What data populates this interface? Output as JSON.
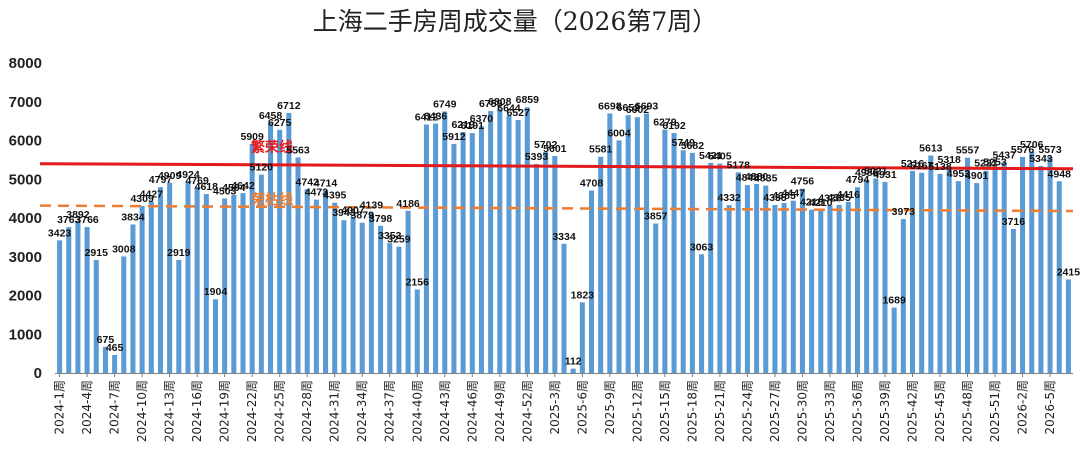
{
  "chart_data": {
    "type": "bar",
    "title": "上海二手房周成交量（2026第7周）",
    "xlabel": "",
    "ylabel": "",
    "ylim": [
      0,
      8000
    ],
    "y_ticks": [
      0,
      1000,
      2000,
      3000,
      4000,
      5000,
      6000,
      7000,
      8000
    ],
    "grid": false,
    "bar_color": "#5B9BD5",
    "categories": [
      "2024-1周",
      "2024-2周",
      "2024-3周",
      "2024-4周",
      "2024-5周",
      "2024-6周",
      "2024-7周",
      "2024-8周",
      "2024-9周",
      "2024-10周",
      "2024-11周",
      "2024-12周",
      "2024-13周",
      "2024-14周",
      "2024-15周",
      "2024-16周",
      "2024-17周",
      "2024-18周",
      "2024-19周",
      "2024-20周",
      "2024-21周",
      "2024-22周",
      "2024-23周",
      "2024-24周",
      "2024-25周",
      "2024-26周",
      "2024-27周",
      "2024-28周",
      "2024-29周",
      "2024-30周",
      "2024-31周",
      "2024-32周",
      "2024-33周",
      "2024-34周",
      "2024-35周",
      "2024-36周",
      "2024-37周",
      "2024-38周",
      "2024-39周",
      "2024-40周",
      "2024-41周",
      "2024-42周",
      "2024-43周",
      "2024-44周",
      "2024-45周",
      "2024-46周",
      "2024-47周",
      "2024-48周",
      "2024-49周",
      "2024-50周",
      "2024-51周",
      "2024-52周",
      "2025-1周",
      "2025-2周",
      "2025-3周",
      "2025-4周",
      "2025-5周",
      "2025-6周",
      "2025-7周",
      "2025-8周",
      "2025-9周",
      "2025-10周",
      "2025-11周",
      "2025-12周",
      "2025-13周",
      "2025-14周",
      "2025-15周",
      "2025-16周",
      "2025-17周",
      "2025-18周",
      "2025-19周",
      "2025-20周",
      "2025-21周",
      "2025-22周",
      "2025-23周",
      "2025-24周",
      "2025-25周",
      "2025-26周",
      "2025-27周",
      "2025-28周",
      "2025-29周",
      "2025-30周",
      "2025-31周",
      "2025-32周",
      "2025-33周",
      "2025-34周",
      "2025-35周",
      "2025-36周",
      "2025-37周",
      "2025-38周",
      "2025-39周",
      "2025-40周",
      "2025-41周",
      "2025-42周",
      "2025-43周",
      "2025-44周",
      "2025-45周",
      "2025-46周",
      "2025-47周",
      "2025-48周",
      "2025-49周",
      "2025-50周",
      "2025-51周",
      "2025-52周",
      "2026-1周",
      "2026-2周",
      "2026-3周",
      "2026-4周",
      "2026-5周",
      "2026-6周",
      "2026-7周"
    ],
    "tick_labels": [
      "2024-1周",
      "2024-4周",
      "2024-7周",
      "2024-10周",
      "2024-13周",
      "2024-16周",
      "2024-19周",
      "2024-22周",
      "2024-25周",
      "2024-28周",
      "2024-31周",
      "2024-34周",
      "2024-37周",
      "2024-40周",
      "2024-43周",
      "2024-46周",
      "2024-49周",
      "2024-52周",
      "2025-3周",
      "2025-6周",
      "2025-9周",
      "2025-12周",
      "2025-15周",
      "2025-18周",
      "2025-21周",
      "2025-24周",
      "2025-27周",
      "2025-30周",
      "2025-33周",
      "2025-36周",
      "2025-39周",
      "2025-42周",
      "2025-45周",
      "2025-48周",
      "2025-51周",
      "2026-2周",
      "2026-5周"
    ],
    "values": [
      3423,
      3763,
      3892,
      3766,
      2915,
      675,
      465,
      3008,
      3834,
      4309,
      4427,
      4797,
      4909,
      2919,
      4924,
      4769,
      4618,
      1904,
      4503,
      4594,
      4642,
      5909,
      5120,
      6458,
      6275,
      6712,
      5563,
      4742,
      4473,
      4714,
      4395,
      3943,
      4007,
      3879,
      4139,
      3798,
      3353,
      3259,
      4186,
      2156,
      6412,
      6436,
      6749,
      5912,
      6219,
      6191,
      6370,
      6759,
      6808,
      6644,
      6527,
      6859,
      5393,
      5702,
      5601,
      3334,
      112,
      1823,
      4708,
      5581,
      6698,
      6004,
      6652,
      6602,
      6693,
      3857,
      6279,
      6192,
      5749,
      5682,
      3063,
      5421,
      5405,
      4332,
      5178,
      4848,
      4880,
      4835,
      4335,
      4385,
      4447,
      4756,
      4216,
      4210,
      4328,
      4335,
      4416,
      4794,
      4986,
      5021,
      4931,
      1689,
      3973,
      5216,
      5167,
      5613,
      5138,
      5318,
      4953,
      5557,
      4901,
      5221,
      5253,
      5437,
      3716,
      5576,
      5706,
      5343,
      5573,
      4948,
      2415
    ],
    "data_labels": [
      "3423",
      "3763",
      "3892",
      "3766",
      "2915",
      "675",
      "465",
      "3008",
      "3834",
      "4309",
      "4427",
      "4797",
      "4909",
      "2919",
      "4924",
      "4769",
      "4618",
      "1904",
      "4503",
      "4594",
      "4642",
      "5909",
      "5120",
      "6458",
      "6275",
      "6712",
      "5563",
      "4742",
      "4473",
      "4714",
      "4395",
      "3943",
      "4007",
      "3879",
      "4139",
      "3798",
      "3353",
      "3259",
      "4186",
      "2156",
      "6412",
      "6436",
      "6749",
      "5912",
      "6219",
      "6191",
      "6370",
      "6759",
      "6808",
      "6644",
      "6527",
      "6859",
      "5393",
      "5702",
      "5601",
      "3334",
      "112",
      "1823",
      "4708",
      "5581",
      "6698",
      "6004",
      "6652",
      "6602",
      "6693",
      "3857",
      "6279",
      "6192",
      "5749",
      "5682",
      "3063",
      "5421",
      "5405",
      "4332",
      "5178",
      "4848",
      "4880",
      "4835",
      "4335",
      "4385",
      "4447",
      "4756",
      "4216",
      "4210",
      "4328",
      "4335",
      "4416",
      "4794",
      "4986",
      "5021",
      "4931",
      "1689",
      "3973",
      "5216",
      "5167",
      "5613",
      "5138",
      "5318",
      "4953",
      "5557",
      "4901",
      "5221",
      "5253",
      "5437",
      "3716",
      "5576",
      "5706",
      "5343",
      "5573",
      "4948",
      "2415"
    ],
    "reference_lines": [
      {
        "name": "繁荣线",
        "start_value": 5400,
        "end_value": 5270,
        "style": "solid",
        "color": "#E31A1C"
      },
      {
        "name": "荣枯线",
        "start_value": 4320,
        "end_value": 4180,
        "style": "dashed",
        "color": "#ED7D31"
      }
    ]
  }
}
